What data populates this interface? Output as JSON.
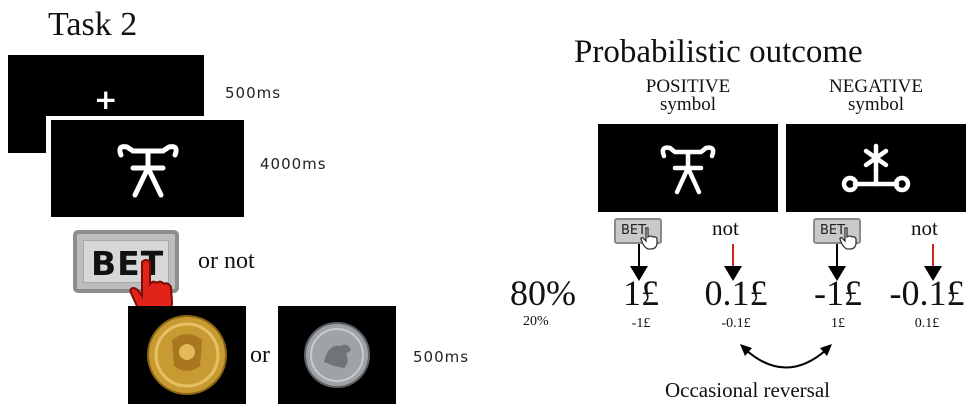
{
  "task": {
    "title": "Task 2"
  },
  "timeline": {
    "fixation_symbol": "+",
    "fixation_duration": "500ms",
    "symbol_duration": "4000ms",
    "bet_label": "BET",
    "or_not": "or not",
    "or": "or",
    "outcome_duration": "500ms"
  },
  "outcome": {
    "title": "Probabilistic outcome",
    "positive_line1": "POSITIVE",
    "positive_line2": "symbol",
    "negative_line1": "NEGATIVE",
    "negative_line2": "symbol",
    "bet_label": "BET",
    "not_label": "not",
    "prob_high": "80%",
    "prob_low": "20%",
    "values": [
      {
        "high": "1£",
        "low": "-1£"
      },
      {
        "high": "0.1£",
        "low": "-0.1£"
      },
      {
        "high": "-1£",
        "low": "1£"
      },
      {
        "high": "-0.1£",
        "low": "0.1£"
      }
    ],
    "reversal": "Occasional reversal"
  },
  "colors": {
    "screen": "#000000",
    "cursor": "#e2231a",
    "arrow_red": "#d32020",
    "bet_bg": "#c9c9c9"
  }
}
